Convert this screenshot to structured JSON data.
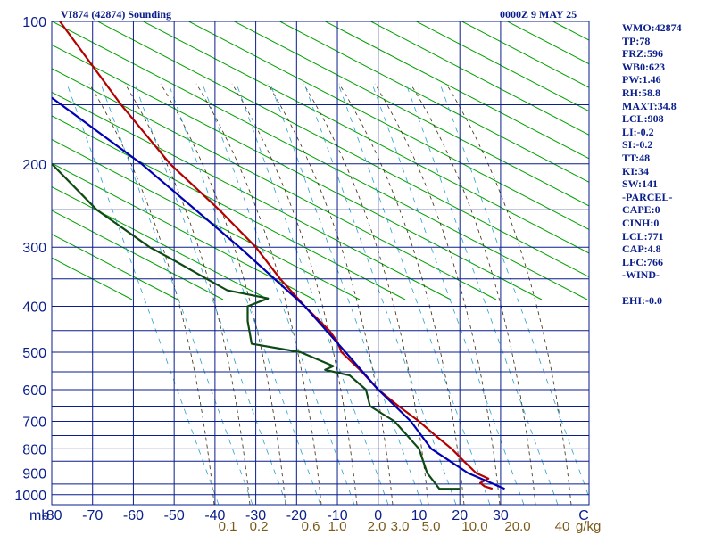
{
  "chart_data": {
    "type": "line",
    "title_left": "VI874 (42874) Sounding",
    "title_right": "0000Z  9 MAY 25",
    "pressure_levels": [
      100,
      200,
      300,
      400,
      500,
      600,
      700,
      800,
      900,
      1000
    ],
    "pressure_gridlines": [
      100,
      150,
      200,
      250,
      300,
      350,
      400,
      450,
      500,
      550,
      600,
      650,
      700,
      750,
      800,
      850,
      900,
      950,
      1000,
      1050
    ],
    "ylim": [
      100,
      1050
    ],
    "temperature_ticks": [
      -80,
      -70,
      -60,
      -50,
      -40,
      -30,
      -20,
      -10,
      0,
      10,
      20,
      30
    ],
    "xlim": [
      -80,
      30
    ],
    "ylabel_unit": "mb",
    "mixing_ratio_labels": [
      "0.1",
      "0.2",
      "0.6",
      "1.0",
      "2.0",
      "3.0",
      "5.0",
      "10.0",
      "20.0",
      "40"
    ],
    "mixing_ratio_unit": "g/kg",
    "mixing_ratio_c_label": "C",
    "series": [
      {
        "color": "#b40000",
        "points": [
          {
            "p": 100,
            "t": -78
          },
          {
            "p": 150,
            "t": -63
          },
          {
            "p": 200,
            "t": -51
          },
          {
            "p": 250,
            "t": -39
          },
          {
            "p": 300,
            "t": -30
          },
          {
            "p": 350,
            "t": -24
          },
          {
            "p": 400,
            "t": -18
          },
          {
            "p": 450,
            "t": -12
          },
          {
            "p": 475,
            "t": -10
          },
          {
            "p": 500,
            "t": -9
          },
          {
            "p": 550,
            "t": -4
          },
          {
            "p": 600,
            "t": 0
          },
          {
            "p": 650,
            "t": 5
          },
          {
            "p": 700,
            "t": 10
          },
          {
            "p": 750,
            "t": 14
          },
          {
            "p": 800,
            "t": 18
          },
          {
            "p": 850,
            "t": 21
          },
          {
            "p": 900,
            "t": 24
          },
          {
            "p": 925,
            "t": 27
          },
          {
            "p": 945,
            "t": 25
          },
          {
            "p": 960,
            "t": 26
          },
          {
            "p": 972,
            "t": 28
          }
        ]
      },
      {
        "color": "#0000b4",
        "points": [
          {
            "p": 145,
            "t": -80
          },
          {
            "p": 200,
            "t": -58
          },
          {
            "p": 300,
            "t": -34
          },
          {
            "p": 400,
            "t": -18
          },
          {
            "p": 500,
            "t": -8
          },
          {
            "p": 600,
            "t": 0
          },
          {
            "p": 700,
            "t": 8
          },
          {
            "p": 800,
            "t": 13
          },
          {
            "p": 900,
            "t": 22
          },
          {
            "p": 972,
            "t": 31
          }
        ]
      },
      {
        "color": "#0f4a14",
        "points": [
          {
            "p": 200,
            "t": -80
          },
          {
            "p": 250,
            "t": -69
          },
          {
            "p": 300,
            "t": -56
          },
          {
            "p": 320,
            "t": -50
          },
          {
            "p": 350,
            "t": -42
          },
          {
            "p": 370,
            "t": -37
          },
          {
            "p": 385,
            "t": -27
          },
          {
            "p": 400,
            "t": -32
          },
          {
            "p": 430,
            "t": -32
          },
          {
            "p": 480,
            "t": -31
          },
          {
            "p": 500,
            "t": -19
          },
          {
            "p": 535,
            "t": -11
          },
          {
            "p": 545,
            "t": -13
          },
          {
            "p": 560,
            "t": -7
          },
          {
            "p": 600,
            "t": -3
          },
          {
            "p": 650,
            "t": -2
          },
          {
            "p": 700,
            "t": 4
          },
          {
            "p": 800,
            "t": 10
          },
          {
            "p": 900,
            "t": 12
          },
          {
            "p": 972,
            "t": 15
          },
          {
            "p": 972,
            "t": 20
          }
        ]
      }
    ]
  },
  "sidebar": {
    "lines": [
      "WMO:42874",
      "TP:78",
      "FRZ:596",
      "WB0:623",
      "PW:1.46",
      "RH:58.8",
      "MAXT:34.8",
      "LCL:908",
      "LI:-0.2",
      "SI:-0.2",
      "TT:48",
      "KI:34",
      "SW:141",
      "-PARCEL-",
      "CAPE:0",
      "CINH:0",
      "LCL:771",
      "CAP:4.8",
      "LFC:766",
      "-WIND-",
      "",
      "EHI:-0.0"
    ]
  },
  "colors": {
    "grid": "#0a1e8c",
    "dry_adiabat": "#00a000",
    "moist_adiabat": "#3a2a0a",
    "mixing_ratio": "#2aa0d0",
    "axis_text": "#0a1e8c",
    "mixing_text": "#7a5a1a"
  }
}
